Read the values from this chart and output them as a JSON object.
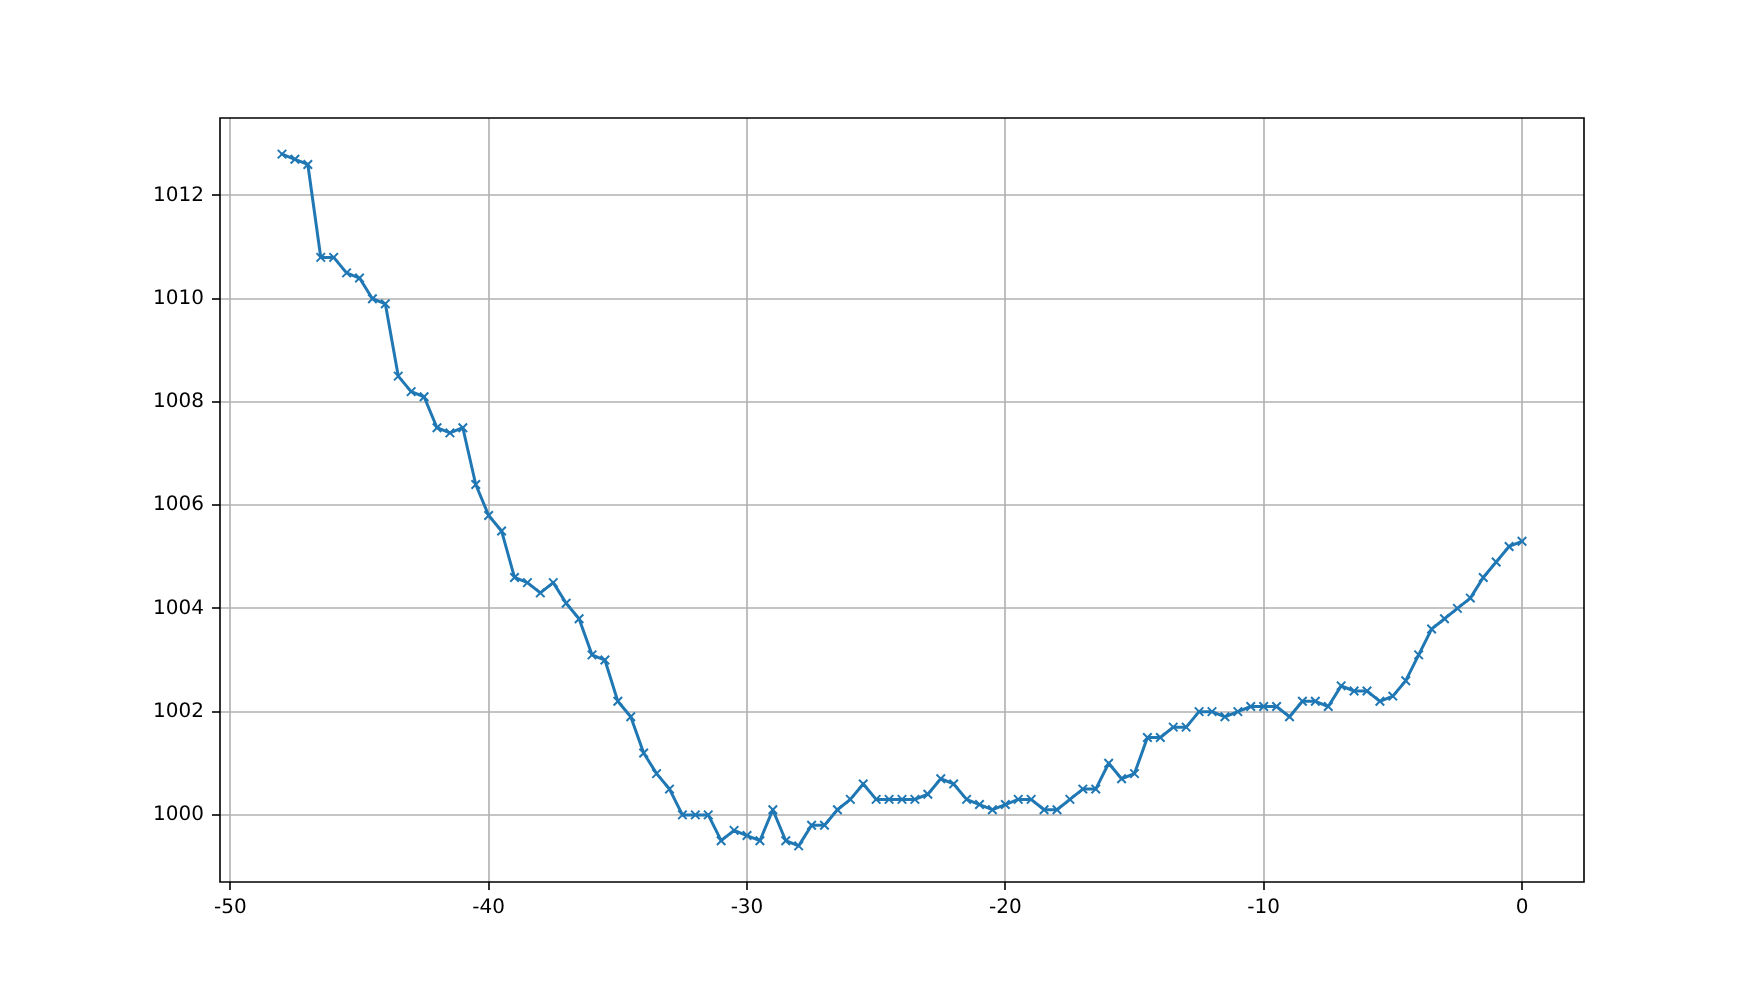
{
  "chart_data": {
    "type": "line",
    "x": [
      -48,
      -47.5,
      -47,
      -46.5,
      -46,
      -45.5,
      -45,
      -44.5,
      -44,
      -43.5,
      -43,
      -42.5,
      -42,
      -41.5,
      -41,
      -40.5,
      -40,
      -39.5,
      -39,
      -38.5,
      -38,
      -37.5,
      -37,
      -36.5,
      -36,
      -35.5,
      -35,
      -34.5,
      -34,
      -33.5,
      -33,
      -32.5,
      -32,
      -31.5,
      -31,
      -30.5,
      -30,
      -29.5,
      -29,
      -28.5,
      -28,
      -27.5,
      -27,
      -26.5,
      -26,
      -25.5,
      -25,
      -24.5,
      -24,
      -23.5,
      -23,
      -22.5,
      -22,
      -21.5,
      -21,
      -20.5,
      -20,
      -19.5,
      -19,
      -18.5,
      -18,
      -17.5,
      -17,
      -16.5,
      -16,
      -15.5,
      -15,
      -14.5,
      -14,
      -13.5,
      -13,
      -12.5,
      -12,
      -11.5,
      -11,
      -10.5,
      -10,
      -9.5,
      -9,
      -8.5,
      -8,
      -7.5,
      -7,
      -6.5,
      -6,
      -5.5,
      -5,
      -4.5,
      -4,
      -3.5,
      -3,
      -2.5,
      -2,
      -1.5,
      -1,
      -0.5,
      0
    ],
    "series": [
      {
        "color": "#1f77b4",
        "values": [
          1012.8,
          1012.7,
          1012.6,
          1010.8,
          1010.8,
          1010.5,
          1010.4,
          1010.0,
          1009.9,
          1008.5,
          1008.2,
          1008.1,
          1007.5,
          1007.4,
          1007.5,
          1006.4,
          1005.8,
          1005.5,
          1004.6,
          1004.5,
          1004.3,
          1004.5,
          1004.1,
          1003.8,
          1003.1,
          1003.0,
          1002.2,
          1001.9,
          1001.2,
          1000.8,
          1000.5,
          1000.0,
          1000.0,
          1000.0,
          999.5,
          999.7,
          999.6,
          999.5,
          1000.1,
          999.5,
          999.4,
          999.8,
          999.8,
          1000.1,
          1000.3,
          1000.6,
          1000.3,
          1000.3,
          1000.3,
          1000.3,
          1000.4,
          1000.7,
          1000.6,
          1000.3,
          1000.2,
          1000.1,
          1000.2,
          1000.3,
          1000.3,
          1000.1,
          1000.1,
          1000.3,
          1000.5,
          1000.5,
          1001.0,
          1000.7,
          1000.8,
          1001.5,
          1001.5,
          1001.7,
          1001.7,
          1002.0,
          1002.0,
          1001.9,
          1002.0,
          1002.1,
          1002.1,
          1002.1,
          1001.9,
          1002.2,
          1002.2,
          1002.1,
          1002.5,
          1002.4,
          1002.4,
          1002.2,
          1002.3,
          1002.6,
          1003.1,
          1003.6,
          1003.8,
          1004.0,
          1004.2,
          1004.6,
          1004.9,
          1005.2,
          1005.3
        ]
      }
    ],
    "xlim": [
      -50.4,
      2.4
    ],
    "ylim": [
      998.7,
      1013.5
    ],
    "xticks": [
      -50,
      -40,
      -30,
      -20,
      -10,
      0
    ],
    "yticks": [
      1000,
      1002,
      1004,
      1006,
      1008,
      1010,
      1012
    ],
    "grid": true,
    "marker": "cross",
    "line_style": "solid"
  }
}
